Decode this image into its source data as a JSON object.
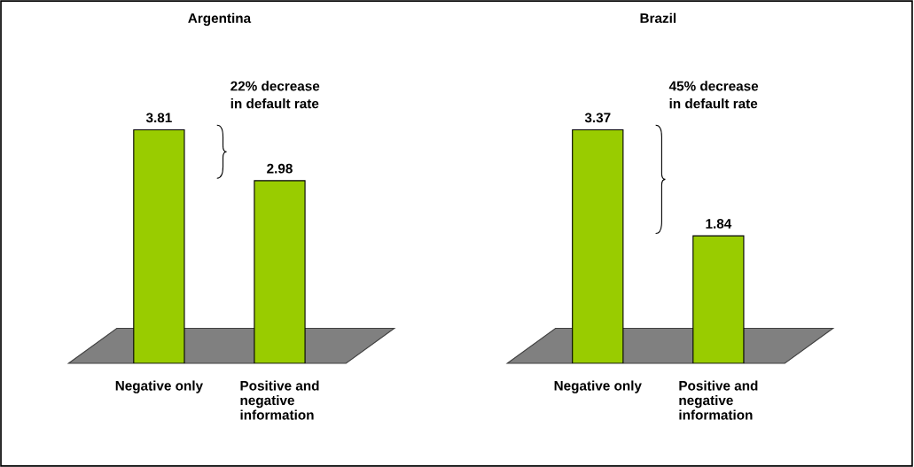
{
  "chart_data": [
    {
      "type": "bar",
      "title": "Argentina",
      "categories": [
        "Negative only",
        "Positive and\nnegative\ninformation"
      ],
      "values": [
        3.81,
        2.98
      ],
      "color": "#99cc00",
      "data_labels": true,
      "annotations": [
        "22% decrease\nin default rate"
      ]
    },
    {
      "type": "bar",
      "title": "Brazil",
      "categories": [
        "Negative only",
        "Positive and\nnegative\ninformation"
      ],
      "values": [
        3.37,
        1.84
      ],
      "color": "#99cc00",
      "data_labels": true,
      "annotations": [
        "45% decrease\nin default rate"
      ]
    }
  ]
}
